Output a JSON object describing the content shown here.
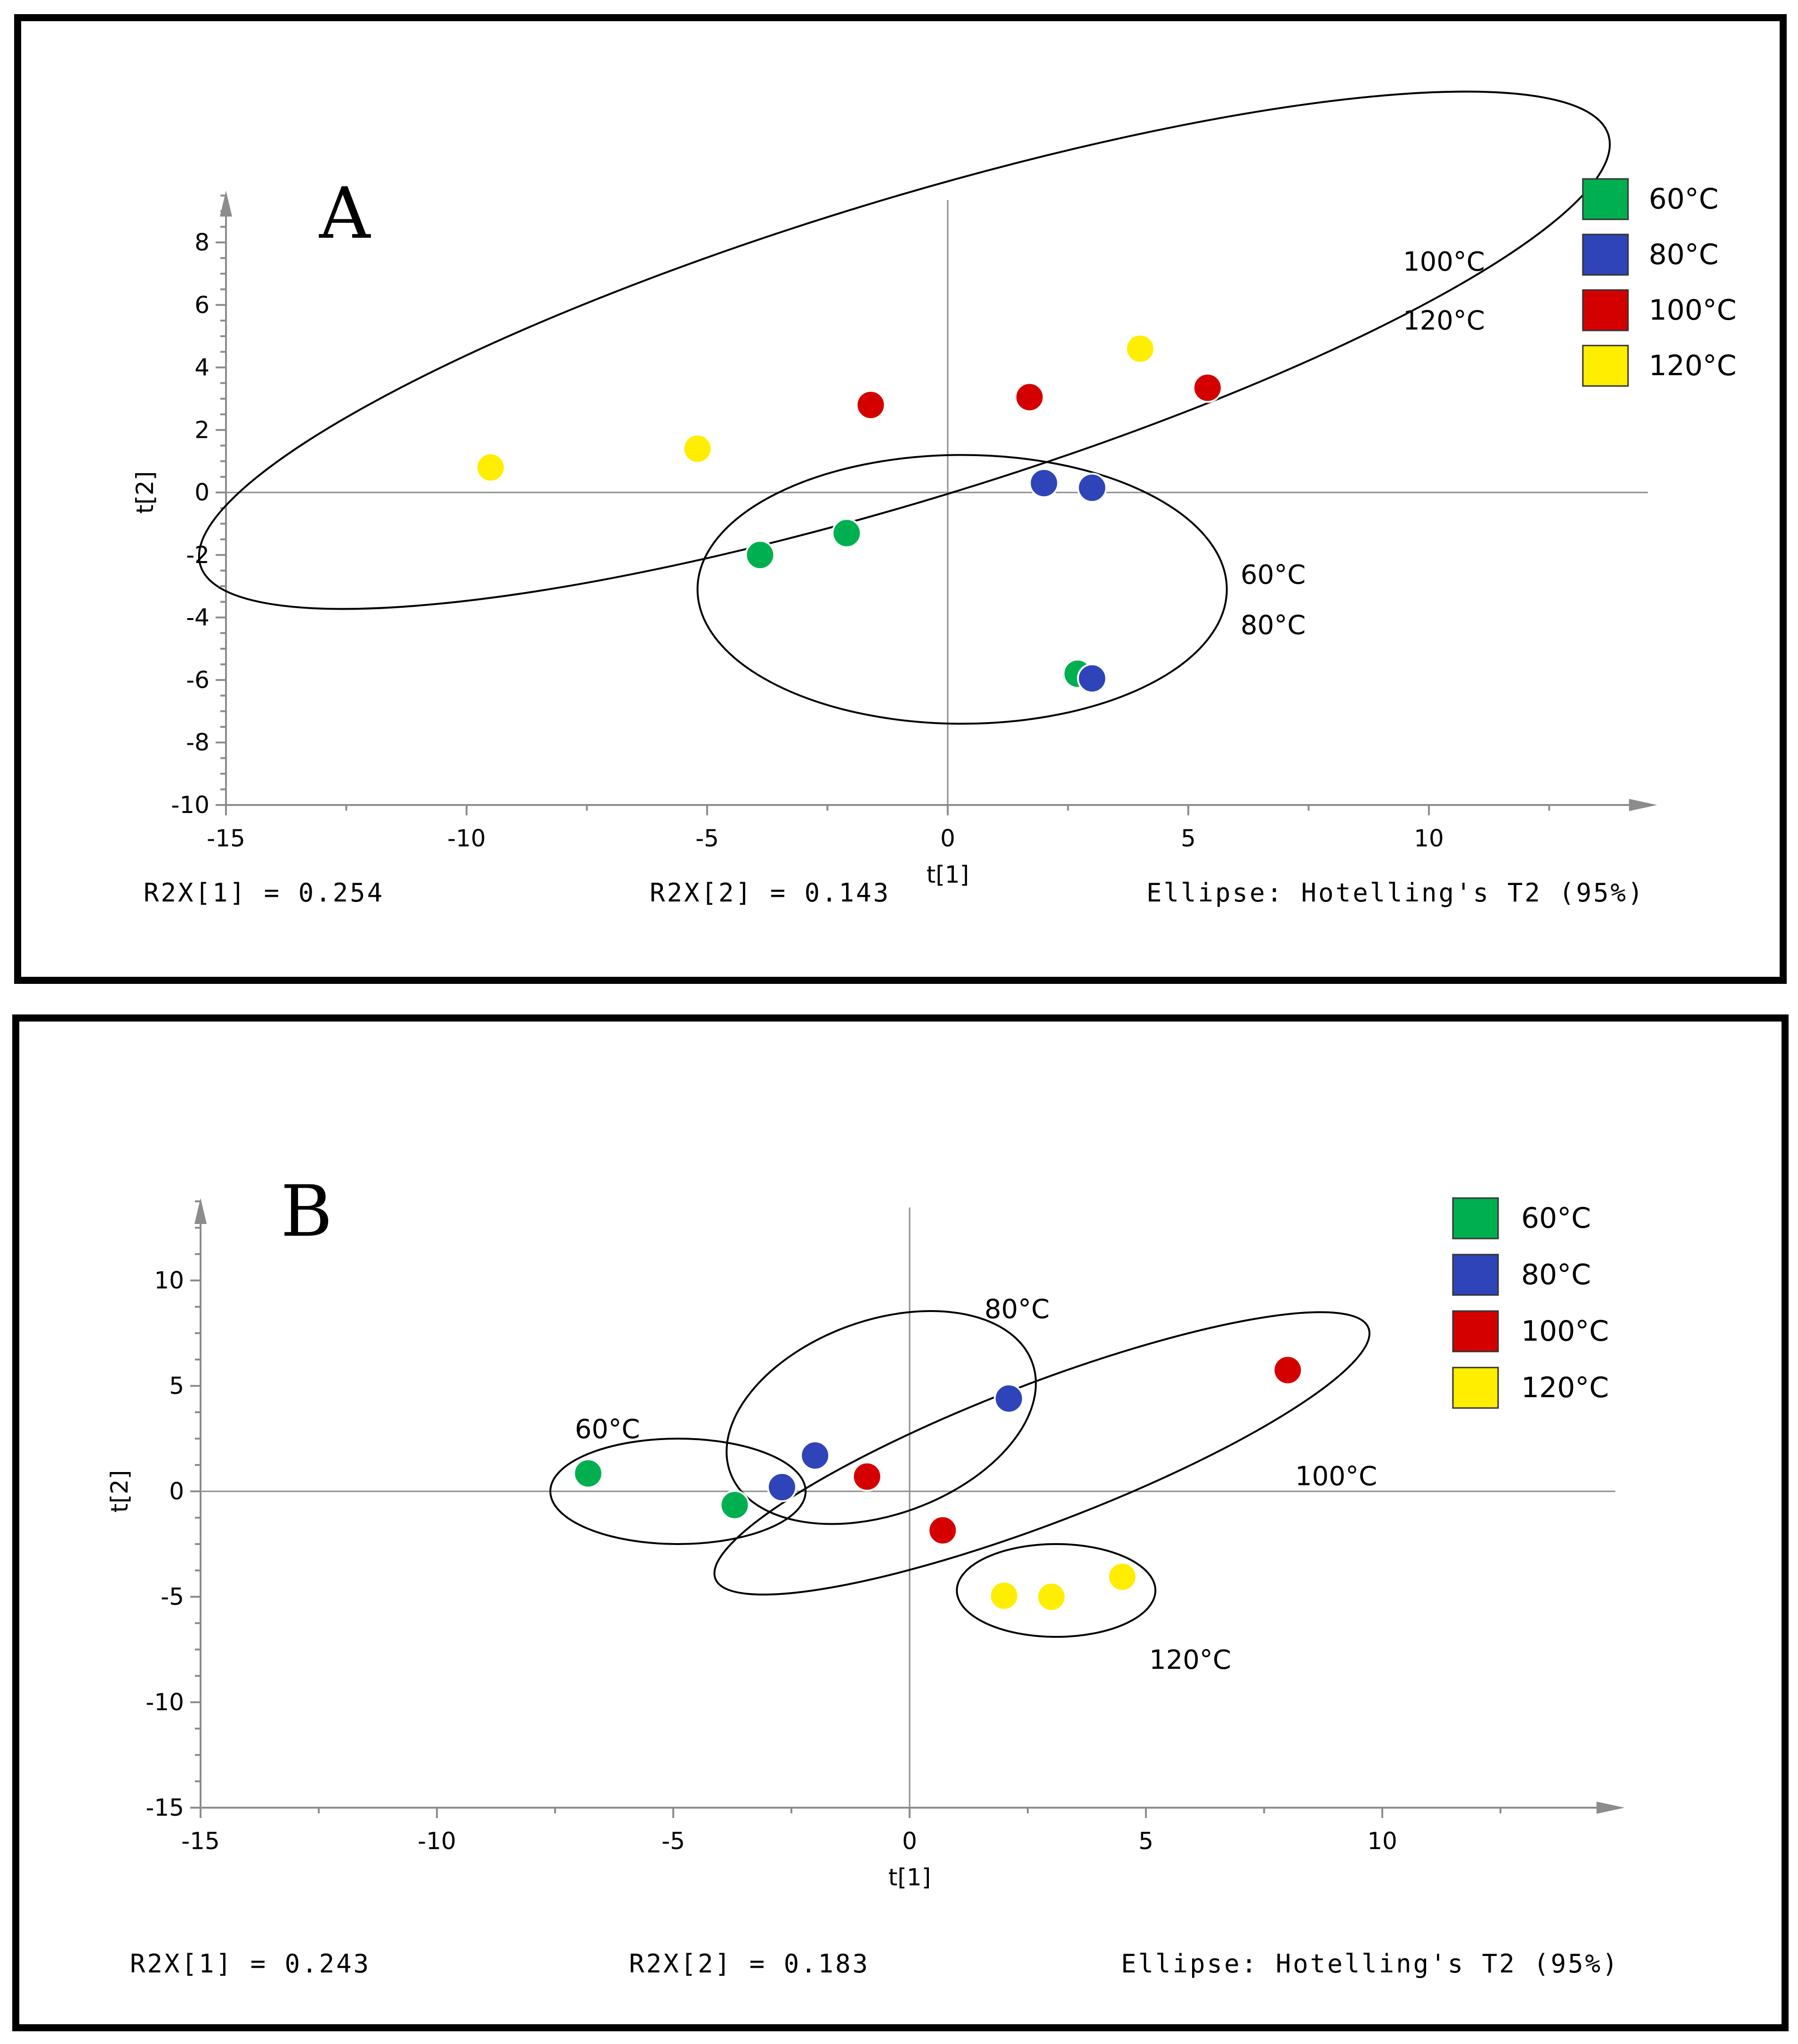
{
  "chart_data": [
    {
      "type": "scatter",
      "panel": "A",
      "xlabel": "t[1]",
      "ylabel": "t[2]",
      "xlim": [
        -15,
        15
      ],
      "ylim": [
        -10,
        10
      ],
      "xticks": [
        -15,
        -10,
        -5,
        0,
        5,
        10
      ],
      "xtick_labels": [
        "-15",
        "-10",
        "-5",
        "0",
        "5",
        "10"
      ],
      "yticks": [
        -10,
        -8,
        -6,
        -4,
        -2,
        0,
        2,
        4,
        6,
        8
      ],
      "ytick_labels": [
        "-10",
        "-8",
        "-6",
        "-4",
        "-2",
        "0",
        "2",
        "4",
        "6",
        "8"
      ],
      "legend_placement": "top-right",
      "series": [
        {
          "name": "60°C",
          "color": "#00b050",
          "points": [
            [
              -3.9,
              -2.0
            ],
            [
              -2.1,
              -1.3
            ],
            [
              2.7,
              -5.8
            ]
          ]
        },
        {
          "name": "80°C",
          "color": "#2e44b8",
          "points": [
            [
              2.0,
              0.3
            ],
            [
              3.0,
              0.15
            ],
            [
              3.0,
              -5.95
            ]
          ]
        },
        {
          "name": "100°C",
          "color": "#d40000",
          "points": [
            [
              -1.6,
              2.8
            ],
            [
              1.7,
              3.05
            ],
            [
              5.4,
              3.35
            ]
          ]
        },
        {
          "name": "120°C",
          "color": "#ffee00",
          "points": [
            [
              -9.5,
              0.8
            ],
            [
              -5.2,
              1.4
            ],
            [
              4.0,
              4.6
            ]
          ]
        }
      ],
      "ellipses": [
        {
          "groups": [
            "100°C",
            "120°C"
          ],
          "center": [
            -0.9,
            4.55
          ],
          "semi_axes": [
            15.3,
            4.8
          ],
          "angle_deg": 17,
          "labels": [
            "100°C",
            "120°C"
          ]
        },
        {
          "groups": [
            "60°C",
            "80°C"
          ],
          "center": [
            0.3,
            -3.1
          ],
          "semi_axes": [
            5.5,
            4.3
          ],
          "angle_deg": 0,
          "labels": [
            "60°C",
            "80°C"
          ]
        }
      ],
      "footer": {
        "r2x1": "R2X[1] = 0.254",
        "r2x2": "R2X[2] = 0.143",
        "ellipse": "Ellipse: Hotelling's T2 (95%)"
      }
    },
    {
      "type": "scatter",
      "panel": "B",
      "xlabel": "t[1]",
      "ylabel": "t[2]",
      "xlim": [
        -15,
        15
      ],
      "ylim": [
        -15,
        15
      ],
      "xticks": [
        -15,
        -10,
        -5,
        0,
        5,
        10
      ],
      "xtick_labels": [
        "-15",
        "-10",
        "-5",
        "0",
        "5",
        "10"
      ],
      "yticks": [
        -15,
        -10,
        -5,
        0,
        5,
        10
      ],
      "ytick_labels": [
        "-15",
        "-10",
        "-5",
        "0",
        "5",
        "10"
      ],
      "legend_placement": "top-right",
      "series": [
        {
          "name": "60°C",
          "color": "#00b050",
          "points": [
            [
              -6.8,
              0.85
            ],
            [
              -3.7,
              -0.65
            ]
          ]
        },
        {
          "name": "80°C",
          "color": "#2e44b8",
          "points": [
            [
              -2.7,
              0.2
            ],
            [
              -2.0,
              1.7
            ],
            [
              2.1,
              4.4
            ]
          ]
        },
        {
          "name": "100°C",
          "color": "#d40000",
          "points": [
            [
              -0.9,
              0.7
            ],
            [
              0.7,
              -1.85
            ],
            [
              8.0,
              5.75
            ]
          ]
        },
        {
          "name": "120°C",
          "color": "#ffee00",
          "points": [
            [
              2.0,
              -4.95
            ],
            [
              3.0,
              -5.0
            ],
            [
              4.5,
              -4.05
            ]
          ]
        }
      ],
      "ellipses": [
        {
          "groups": [
            "60°C"
          ],
          "center": [
            -4.9,
            0.0
          ],
          "semi_axes": [
            2.7,
            2.5
          ],
          "angle_deg": 0,
          "labels": [
            "60°C"
          ]
        },
        {
          "groups": [
            "80°C"
          ],
          "center": [
            -0.6,
            3.5
          ],
          "semi_axes": [
            3.4,
            4.6
          ],
          "angle_deg": 20,
          "labels": [
            "80°C"
          ]
        },
        {
          "groups": [
            "100°C"
          ],
          "center": [
            2.8,
            1.8
          ],
          "semi_axes": [
            7.4,
            3.3
          ],
          "angle_deg": 21,
          "labels": [
            "100°C"
          ]
        },
        {
          "groups": [
            "120°C"
          ],
          "center": [
            3.1,
            -4.7
          ],
          "semi_axes": [
            2.1,
            2.2
          ],
          "angle_deg": 0,
          "labels": [
            "120°C"
          ]
        }
      ],
      "footer": {
        "r2x1": "R2X[1] = 0.243",
        "r2x2": "R2X[2] = 0.183",
        "ellipse": "Ellipse: Hotelling's T2 (95%)"
      }
    }
  ]
}
